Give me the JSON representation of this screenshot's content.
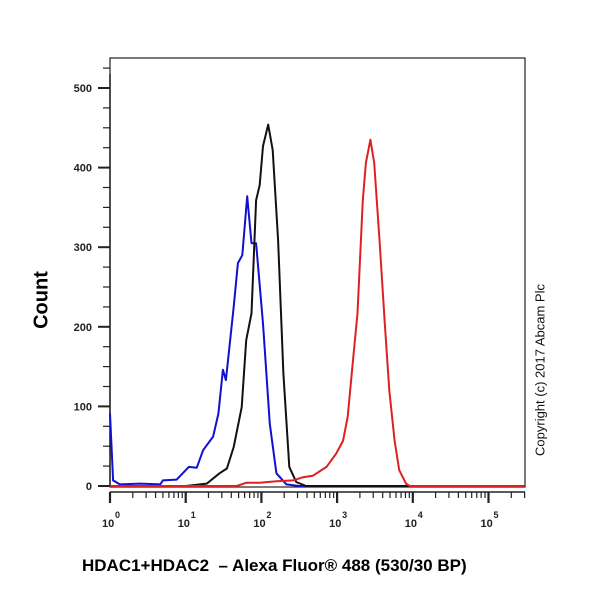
{
  "chart_data": {
    "type": "line",
    "title": "",
    "xlabel": "HDAC1+HDAC2  – Alexa Fluor® 488 (530/30 BP)",
    "ylabel": "Count",
    "xscale": "log",
    "xlim": [
      1,
      316228
    ],
    "ylim": [
      0,
      530
    ],
    "grid": false,
    "legend": "none",
    "annotation": "Copyright (c) 2017 Abcam Plc",
    "x_ticks": [
      {
        "value": 1,
        "base": "10",
        "exp": "0"
      },
      {
        "value": 10,
        "base": "10",
        "exp": "1"
      },
      {
        "value": 100,
        "base": "10",
        "exp": "2"
      },
      {
        "value": 1000,
        "base": "10",
        "exp": "3"
      },
      {
        "value": 10000,
        "base": "10",
        "exp": "4"
      },
      {
        "value": 100000,
        "base": "10",
        "exp": "5"
      }
    ],
    "y_ticks": [
      "0",
      "100",
      "200",
      "300",
      "400",
      "500"
    ],
    "series": [
      {
        "color": "#1010d0",
        "points": [
          [
            1,
            91
          ],
          [
            1.1,
            7
          ],
          [
            1.35,
            2
          ],
          [
            2.5,
            3
          ],
          [
            4.6,
            2
          ],
          [
            5,
            7
          ],
          [
            7.6,
            8
          ],
          [
            11,
            24
          ],
          [
            14,
            23
          ],
          [
            17,
            45
          ],
          [
            23,
            62
          ],
          [
            27,
            91
          ],
          [
            31,
            146
          ],
          [
            34,
            133
          ],
          [
            43,
            225
          ],
          [
            49,
            280
          ],
          [
            56,
            290
          ],
          [
            65,
            364
          ],
          [
            74,
            305
          ],
          [
            85,
            305
          ],
          [
            105,
            204
          ],
          [
            129,
            78
          ],
          [
            158,
            16
          ],
          [
            214,
            2
          ],
          [
            316,
            0
          ],
          [
            300000,
            0
          ]
        ]
      },
      {
        "color": "#111111",
        "points": [
          [
            1,
            0
          ],
          [
            10,
            0
          ],
          [
            19,
            3
          ],
          [
            28,
            16
          ],
          [
            35,
            22
          ],
          [
            43,
            49
          ],
          [
            55,
            99
          ],
          [
            63,
            183
          ],
          [
            74,
            217
          ],
          [
            85,
            359
          ],
          [
            95,
            378
          ],
          [
            105,
            427
          ],
          [
            123,
            454
          ],
          [
            141,
            422
          ],
          [
            166,
            309
          ],
          [
            195,
            141
          ],
          [
            234,
            24
          ],
          [
            288,
            5
          ],
          [
            389,
            0
          ],
          [
            300000,
            0
          ]
        ]
      },
      {
        "color": "#e02020",
        "points": [
          [
            1,
            0
          ],
          [
            47,
            0
          ],
          [
            63,
            4
          ],
          [
            95,
            4
          ],
          [
            158,
            6
          ],
          [
            263,
            7
          ],
          [
            355,
            11
          ],
          [
            479,
            13
          ],
          [
            724,
            24
          ],
          [
            977,
            41
          ],
          [
            1202,
            57
          ],
          [
            1380,
            87
          ],
          [
            1622,
            158
          ],
          [
            1862,
            217
          ],
          [
            2188,
            359
          ],
          [
            2399,
            406
          ],
          [
            2754,
            435
          ],
          [
            3090,
            406
          ],
          [
            3631,
            309
          ],
          [
            4266,
            204
          ],
          [
            4898,
            120
          ],
          [
            5754,
            57
          ],
          [
            6607,
            20
          ],
          [
            8128,
            3
          ],
          [
            9120,
            0
          ],
          [
            300000,
            0
          ]
        ]
      }
    ]
  }
}
